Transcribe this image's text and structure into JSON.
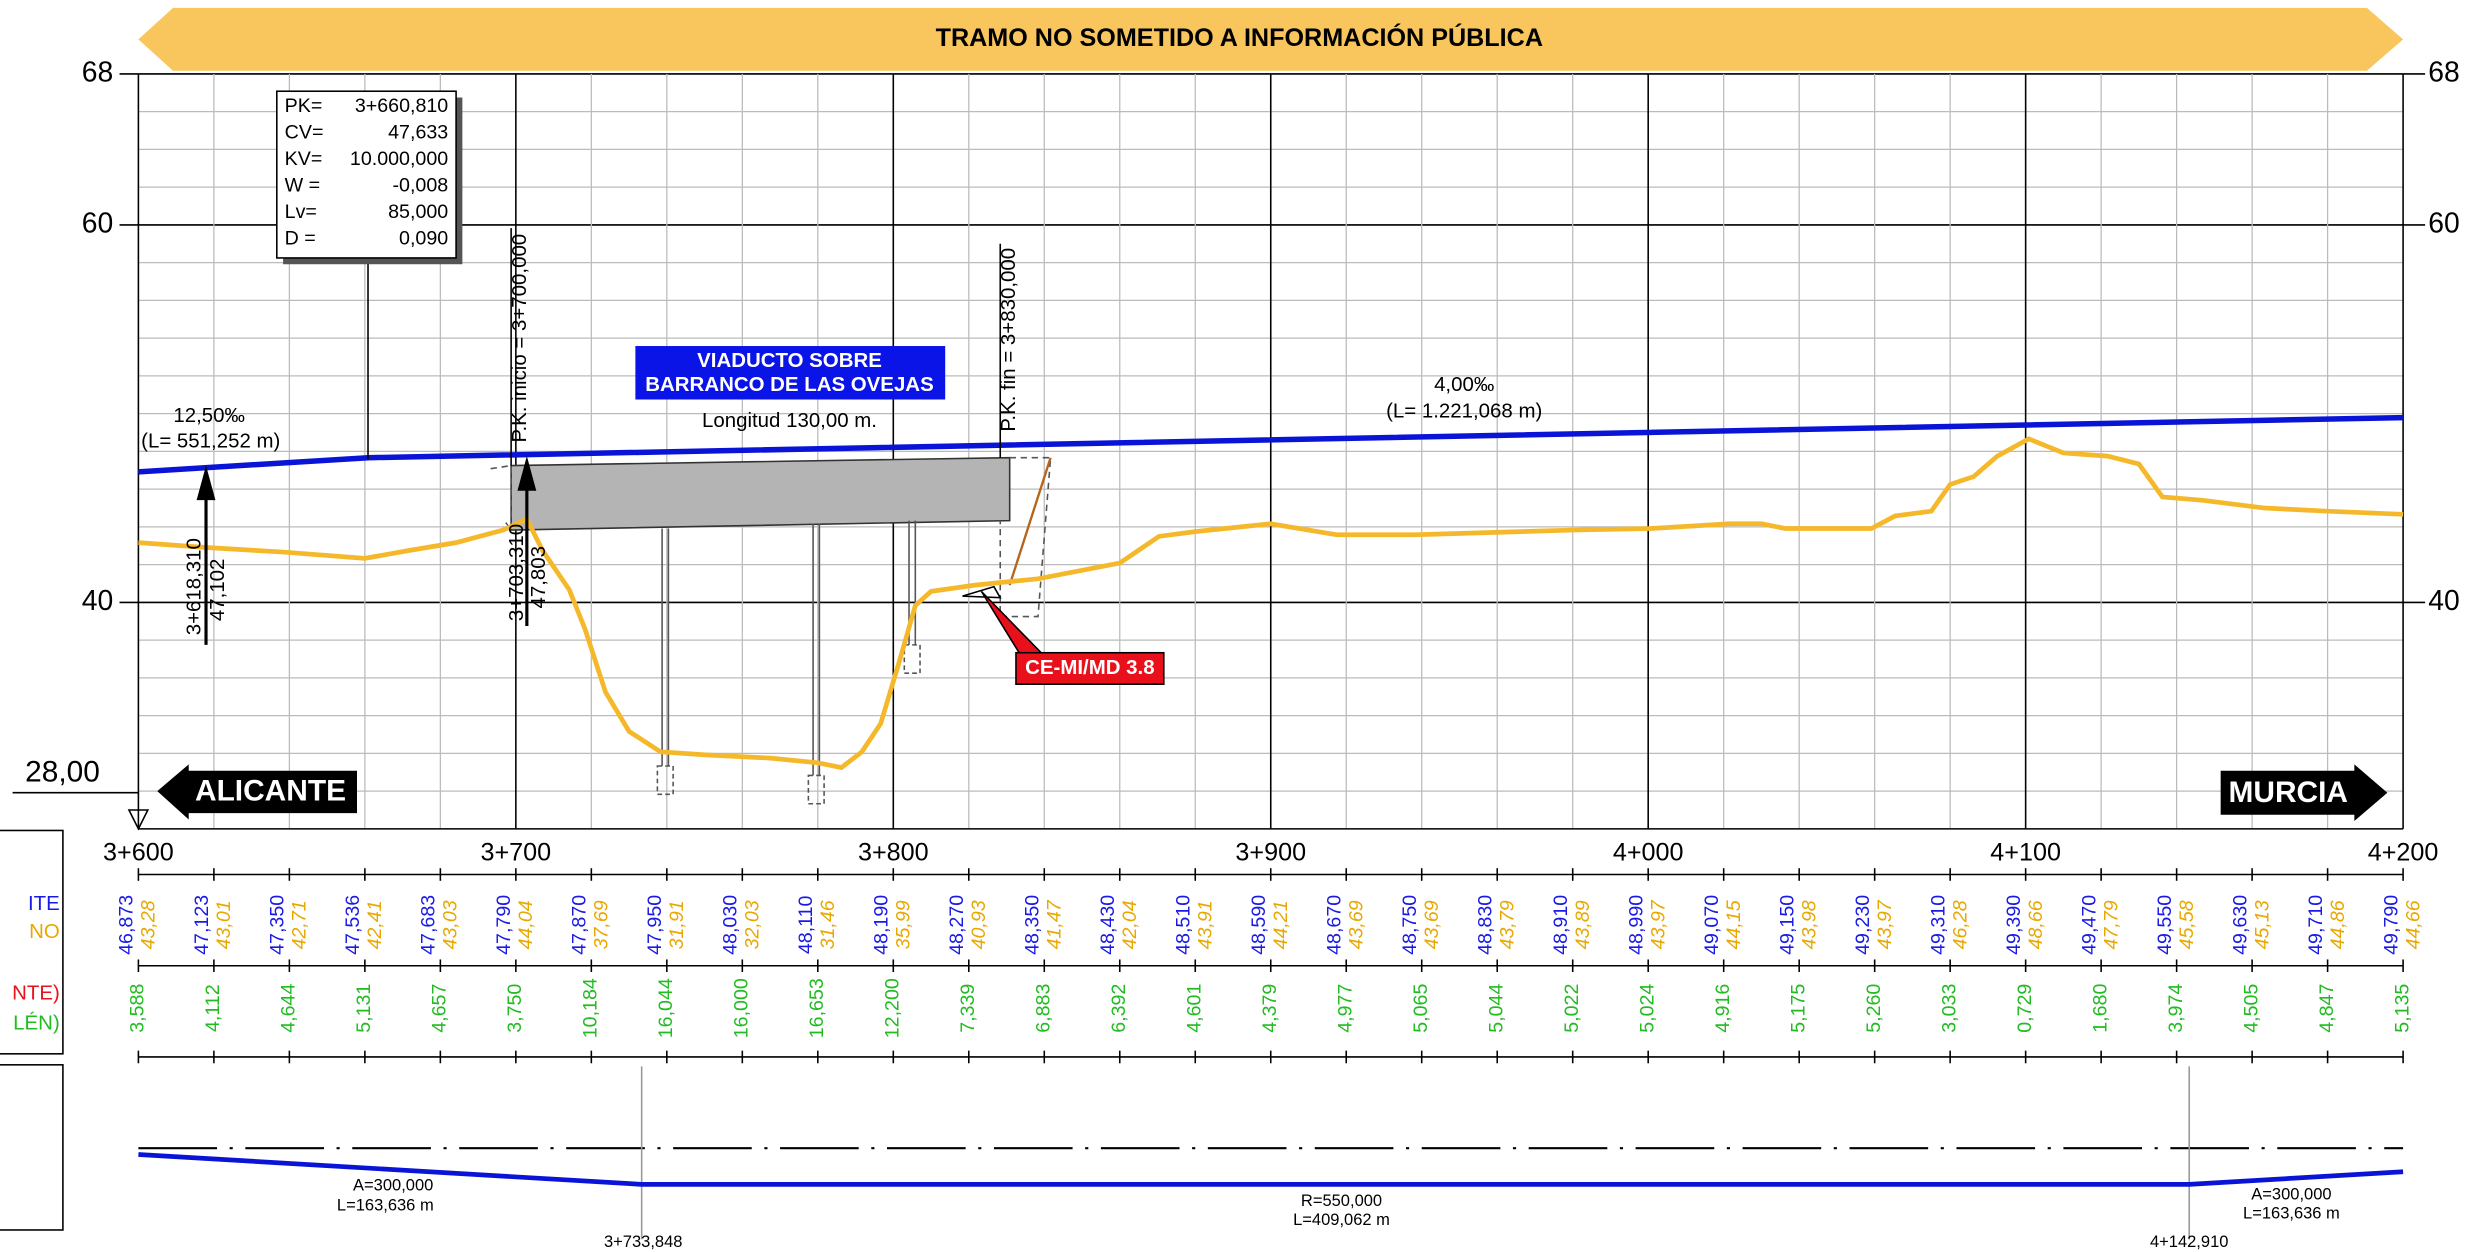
{
  "banner": "TRAMO NO SOMETIDO A INFORMACIÓN PÚBLICA",
  "elevation_labels": {
    "left": [
      "68",
      "60",
      "40"
    ],
    "right": [
      "68",
      "60",
      "40"
    ],
    "datum": "28,00"
  },
  "vertical_curve": {
    "rows": [
      [
        "PK=",
        "3+660,810"
      ],
      [
        "CV=",
        "47,633"
      ],
      [
        "KV=",
        "10.000,000"
      ],
      [
        "W =",
        "-0,008"
      ],
      [
        "Lv=",
        "85,000"
      ],
      [
        "D =",
        "0,090"
      ]
    ]
  },
  "viaduct": {
    "title": [
      "VIADUCTO SOBRE",
      "BARRANCO DE LAS OVEJAS"
    ],
    "length": "Longitud 130,00 m.",
    "start": "P.K. inicio = 3+700,000",
    "end": "P.K. fin = 3+830,000"
  },
  "grades": [
    {
      "slope": "12,50‰",
      "length": "(L= 551,252 m)"
    },
    {
      "slope": "4,00‰",
      "length": "(L= 1.221,068 m)"
    }
  ],
  "markers": [
    {
      "pk": "3+618,310",
      "elevation": "47,102"
    },
    {
      "pk": "3+703,310",
      "elevation": "47,803"
    }
  ],
  "structure_tag": "CE-MI/MD 3.8",
  "directions": {
    "left": "ALICANTE",
    "right": "MURCIA"
  },
  "stations": [
    "3+600",
    "3+700",
    "3+800",
    "3+900",
    "4+000",
    "4+100",
    "4+200"
  ],
  "row_labels": [
    "ITE",
    "NO",
    "NTE)",
    "LÉN)"
  ],
  "grade_elevations": [
    "46,873",
    "47,123",
    "47,350",
    "47,536",
    "47,683",
    "47,790",
    "47,870",
    "47,950",
    "48,030",
    "48,110",
    "48,190",
    "48,270",
    "48,350",
    "48,430",
    "48,510",
    "48,590",
    "48,670",
    "48,750",
    "48,830",
    "48,910",
    "48,990",
    "49,070",
    "49,150",
    "49,230",
    "49,310",
    "49,390",
    "49,470",
    "49,550",
    "49,630",
    "49,710",
    "49,790"
  ],
  "terrain_elevations": [
    "43,28",
    "43,01",
    "42,71",
    "42,41",
    "43,03",
    "44,04",
    "37,69",
    "31,91",
    "32,03",
    "31,46",
    "35,99",
    "40,93",
    "41,47",
    "42,04",
    "43,91",
    "44,21",
    "43,69",
    "43,69",
    "43,79",
    "43,89",
    "43,97",
    "44,15",
    "43,98",
    "43,97",
    "46,28",
    "48,66",
    "47,79",
    "45,58",
    "45,13",
    "44,86",
    "44,66"
  ],
  "differences": [
    "3,588",
    "4,112",
    "4,644",
    "5,131",
    "4,657",
    "3,750",
    "10,184",
    "16,044",
    "16,000",
    "16,653",
    "12,200",
    "7,339",
    "6,883",
    "6,392",
    "4,601",
    "4,379",
    "4,977",
    "5,065",
    "5,044",
    "5,022",
    "5,024",
    "4,916",
    "5,175",
    "5,260",
    "3,033",
    "0,729",
    "1,680",
    "3,974",
    "4,505",
    "4,847",
    "5,135"
  ],
  "plan": {
    "segments": [
      {
        "param": "A=300,000",
        "length": "L=163,636 m"
      },
      {
        "param": "R=550,000",
        "length": "L=409,062 m"
      },
      {
        "param": "A=300,000",
        "length": "L=163,636 m"
      }
    ],
    "points": [
      "3+733,848",
      "4+142,910"
    ]
  }
}
